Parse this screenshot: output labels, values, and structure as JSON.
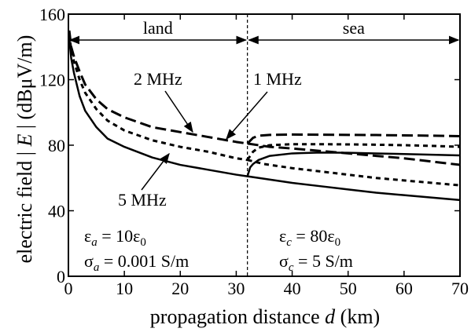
{
  "chart_data": {
    "type": "line",
    "xlabel": "propagation distance d (km)",
    "ylabel": "electric field | E | (dBμV/m)",
    "xlim": [
      0,
      70
    ],
    "ylim": [
      0,
      160
    ],
    "x_ticks": [
      0,
      10,
      20,
      30,
      40,
      50,
      60,
      70
    ],
    "y_ticks": [
      0,
      40,
      80,
      120,
      160
    ],
    "boundary_x": 32,
    "regions": [
      {
        "name": "land",
        "x_range": [
          0,
          32
        ]
      },
      {
        "name": "sea",
        "x_range": [
          32,
          70
        ]
      }
    ],
    "media": {
      "land": {
        "epsilon": "εa = 10ε0",
        "sigma": "σa = 0.001 S/m"
      },
      "sea": {
        "epsilon": "εc = 80ε0",
        "sigma": "σc = 5 S/m"
      }
    },
    "series": [
      {
        "name": "1 MHz",
        "style": "dashed-long",
        "land": {
          "x": [
            0.15,
            0.5,
            1,
            2,
            3,
            5,
            7,
            10,
            15,
            20,
            25,
            30,
            32
          ],
          "y": [
            150,
            140,
            134,
            125,
            117,
            108,
            102,
            97,
            91,
            88,
            85,
            82,
            81
          ]
        },
        "sea_a": {
          "x": [
            32,
            33,
            34,
            36,
            40,
            45,
            50,
            55,
            60,
            65,
            70
          ],
          "y": [
            81,
            84.5,
            85.8,
            86.3,
            86.5,
            86.4,
            86.3,
            86.2,
            86,
            85.8,
            85.5
          ]
        },
        "sea_b": {
          "x": [
            32,
            34,
            36,
            40,
            45,
            50,
            55,
            60,
            65,
            70
          ],
          "y": [
            81,
            80,
            79,
            78,
            76.5,
            75,
            73.5,
            72,
            70,
            68
          ]
        }
      },
      {
        "name": "2 MHz",
        "style": "dashed-short",
        "land": {
          "x": [
            0.15,
            0.5,
            1,
            2,
            3,
            5,
            7,
            10,
            15,
            20,
            25,
            30,
            32
          ],
          "y": [
            148,
            138,
            131,
            120,
            112,
            102,
            95,
            89,
            83,
            79,
            76,
            72,
            71
          ]
        },
        "sea_a": {
          "x": [
            32,
            33,
            34,
            36,
            40,
            45,
            50,
            55,
            60,
            65,
            70
          ],
          "y": [
            71,
            76,
            78.5,
            80,
            80.6,
            80.6,
            80.5,
            80.3,
            80,
            79.6,
            79
          ]
        },
        "sea_b": {
          "x": [
            32,
            35,
            40,
            45,
            50,
            55,
            60,
            65,
            70
          ],
          "y": [
            71,
            68.5,
            66,
            64,
            62,
            60,
            58.5,
            57,
            55.5
          ]
        }
      },
      {
        "name": "5 MHz",
        "style": "solid",
        "land": {
          "x": [
            0.15,
            0.5,
            1,
            2,
            3,
            5,
            7,
            10,
            15,
            20,
            25,
            30,
            32
          ],
          "y": [
            145,
            133,
            124,
            110,
            101,
            91,
            84,
            79,
            72.5,
            68,
            65,
            62,
            61
          ]
        },
        "sea_a": {
          "x": [
            32,
            32.5,
            33,
            34,
            36,
            40,
            45,
            50,
            55,
            60,
            65,
            70
          ],
          "y": [
            61,
            66.5,
            68.5,
            71,
            73.5,
            75,
            75.5,
            75.4,
            75,
            74.6,
            74.2,
            73.8
          ]
        },
        "sea_b": {
          "x": [
            32,
            35,
            40,
            45,
            50,
            55,
            60,
            65,
            70
          ],
          "y": [
            61,
            59.5,
            57,
            55,
            53,
            51,
            49.5,
            48,
            46.5
          ]
        }
      }
    ],
    "labels": {
      "region_land": "land",
      "region_sea": "sea",
      "curve_1mhz": "1 MHz",
      "curve_2mhz": "2 MHz",
      "curve_5mhz": "5 MHz"
    },
    "grid": false
  }
}
